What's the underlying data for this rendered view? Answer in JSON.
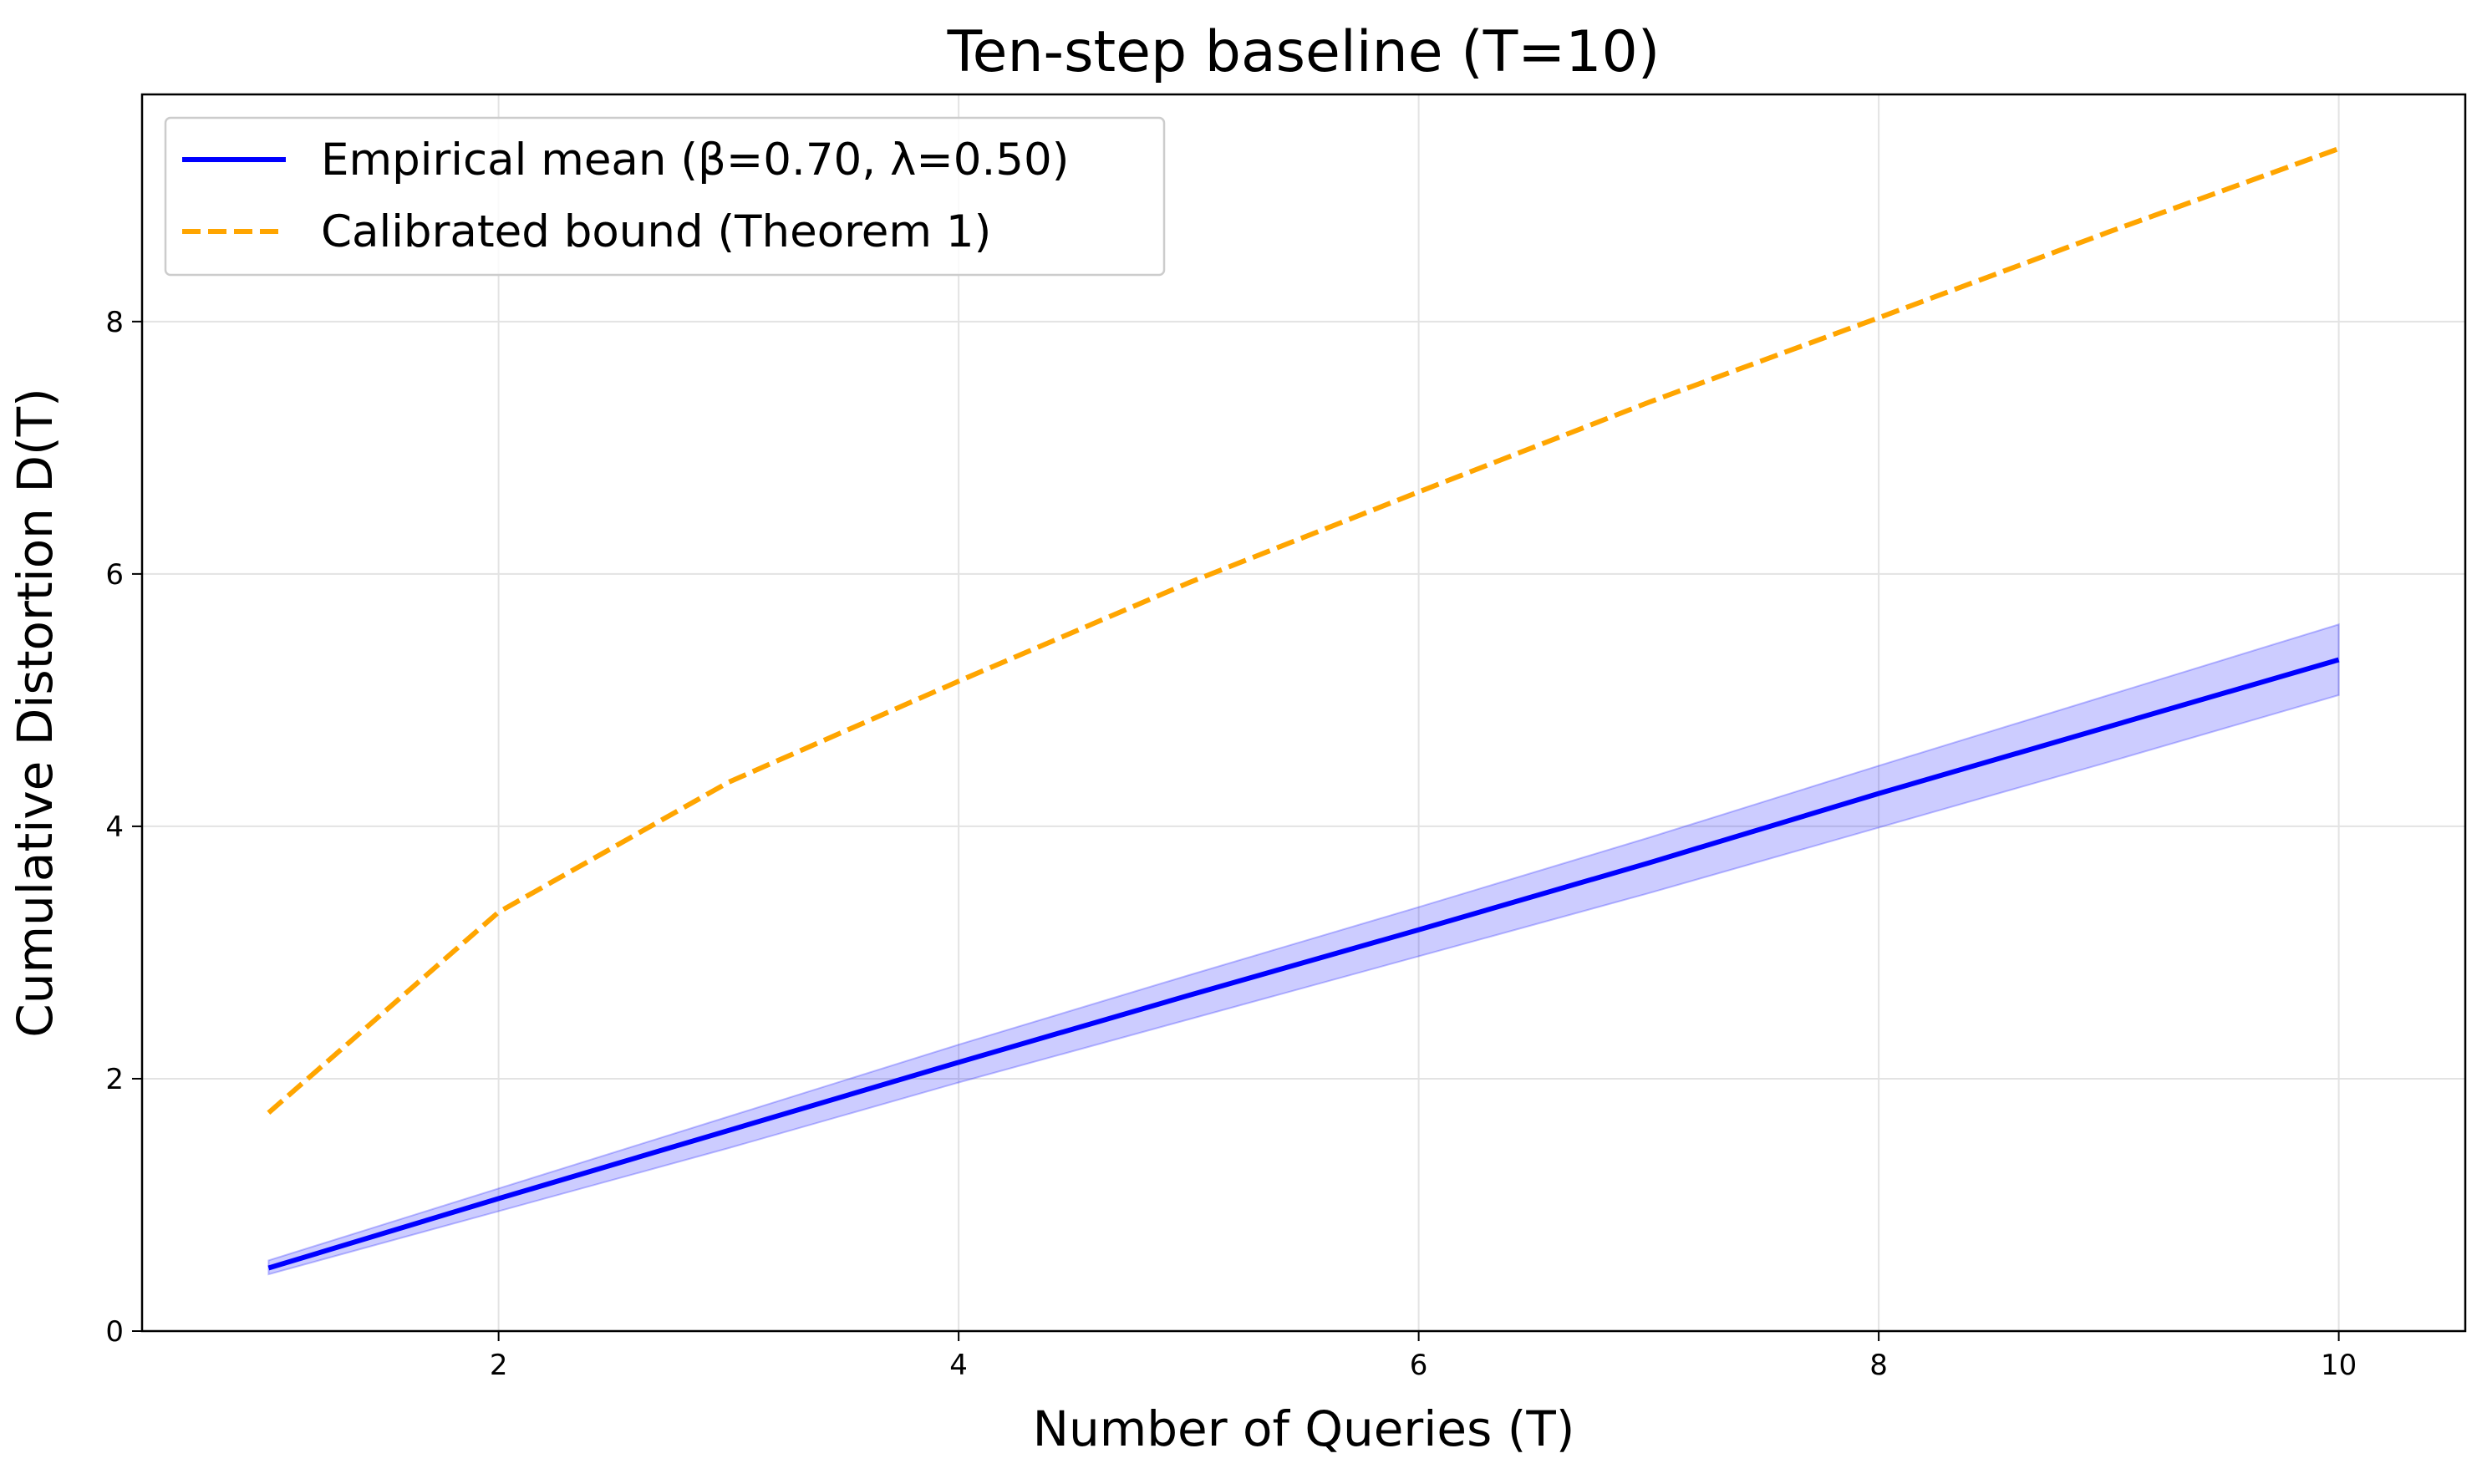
{
  "chart_data": {
    "type": "line",
    "title": "Ten-step baseline (T=10)",
    "xlabel": "Number of Queries (T)",
    "ylabel": "Cumulative Distortion D(T)",
    "xlim": [
      0.45,
      10.55
    ],
    "ylim": [
      0,
      9.8
    ],
    "xticks": [
      2,
      4,
      6,
      8,
      10
    ],
    "yticks": [
      0,
      2,
      4,
      6,
      8
    ],
    "grid": true,
    "legend_position": "top-left",
    "x": [
      1,
      2,
      3,
      4,
      5,
      6,
      7,
      8,
      9,
      10
    ],
    "series": [
      {
        "name": "Empirical mean (β=0.70, λ=0.50)",
        "style": "solid",
        "color": "#0000ff",
        "values": [
          0.5,
          1.05,
          1.59,
          2.13,
          2.66,
          3.18,
          3.71,
          4.26,
          4.79,
          5.32
        ],
        "band_lower": [
          0.45,
          0.95,
          1.45,
          1.97,
          2.47,
          2.97,
          3.47,
          3.99,
          4.51,
          5.04
        ],
        "band_upper": [
          0.56,
          1.13,
          1.7,
          2.27,
          2.82,
          3.36,
          3.91,
          4.48,
          5.04,
          5.6
        ],
        "band_color": "#0000ff"
      },
      {
        "name": "Calibrated bound (Theorem 1)",
        "style": "dashed",
        "color": "#ffa500",
        "values": [
          1.73,
          3.32,
          4.35,
          5.15,
          5.93,
          6.65,
          7.36,
          8.03,
          8.71,
          9.37
        ]
      }
    ]
  }
}
